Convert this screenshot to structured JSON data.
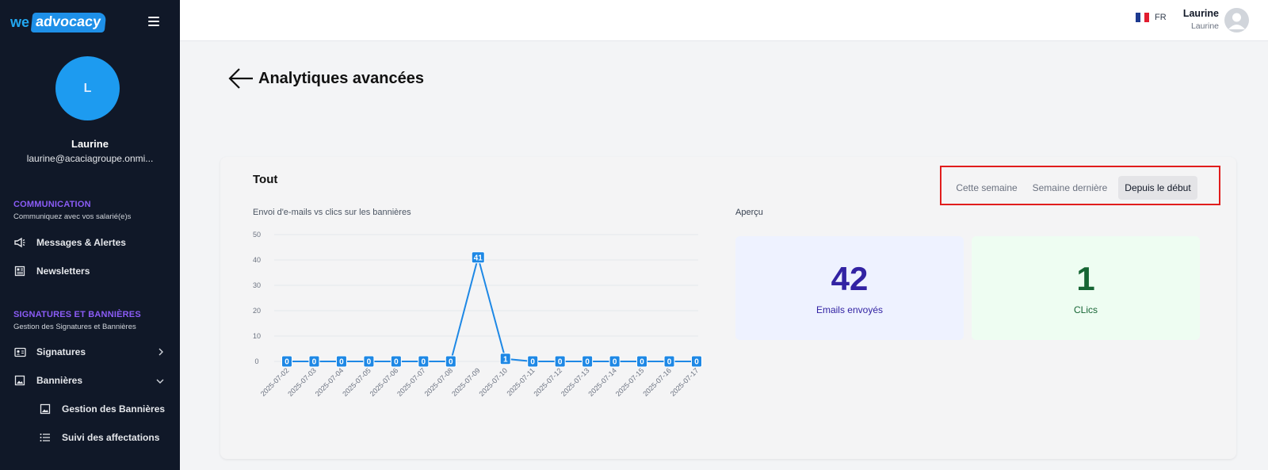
{
  "brand": {
    "we": "we",
    "advocacy": "advocacy"
  },
  "sidebar": {
    "avatar_initial": "L",
    "user_name": "Laurine",
    "user_email": "laurine@acaciagroupe.onmi...",
    "sections": [
      {
        "title": "COMMUNICATION",
        "subtitle": "Communiquez avec vos salarié(e)s"
      },
      {
        "title": "SIGNATURES ET BANNIÈRES",
        "subtitle": "Gestion des Signatures et Bannières"
      }
    ],
    "items": [
      {
        "label": "Messages & Alertes",
        "icon": "megaphone-icon"
      },
      {
        "label": "Newsletters",
        "icon": "newspaper-icon"
      },
      {
        "label": "Signatures",
        "icon": "id-card-icon"
      },
      {
        "label": "Bannières",
        "icon": "image-icon"
      },
      {
        "label": "Gestion des Bannières",
        "icon": "image-icon"
      },
      {
        "label": "Suivi des affectations",
        "icon": "list-icon"
      }
    ]
  },
  "topbar": {
    "language": "FR",
    "user_name": "Laurine",
    "user_sub": "Laurine"
  },
  "page": {
    "title": "Analytiques avancées"
  },
  "card": {
    "title": "Tout",
    "filters": [
      "Cette semaine",
      "Semaine dernière",
      "Depuis le début"
    ],
    "active_filter": "Depuis le début",
    "chart_caption": "Envoi d'e-mails vs clics sur les bannières",
    "apercu_title": "Aperçu",
    "stats": [
      {
        "value": "42",
        "label": "Emails envoyés",
        "color": "#3223a3"
      },
      {
        "value": "1",
        "label": "CLics",
        "color": "#166534"
      }
    ]
  },
  "chart_data": {
    "type": "line",
    "title": "Envoi d'e-mails vs clics sur les bannières",
    "x": [
      "2025-07-02",
      "2025-07-03",
      "2025-07-04",
      "2025-07-05",
      "2025-07-06",
      "2025-07-07",
      "2025-07-08",
      "2025-07-09",
      "2025-07-10",
      "2025-07-11",
      "2025-07-12",
      "2025-07-13",
      "2025-07-14",
      "2025-07-15",
      "2025-07-16",
      "2025-07-17"
    ],
    "series": [
      {
        "values": [
          0,
          0,
          0,
          0,
          0,
          0,
          0,
          41,
          1,
          0,
          0,
          0,
          0,
          0,
          0,
          0
        ],
        "color": "#1e88e5"
      }
    ],
    "y_ticks": [
      0,
      10,
      20,
      30,
      40,
      50
    ],
    "ylim": [
      0,
      50
    ],
    "grid": true
  }
}
